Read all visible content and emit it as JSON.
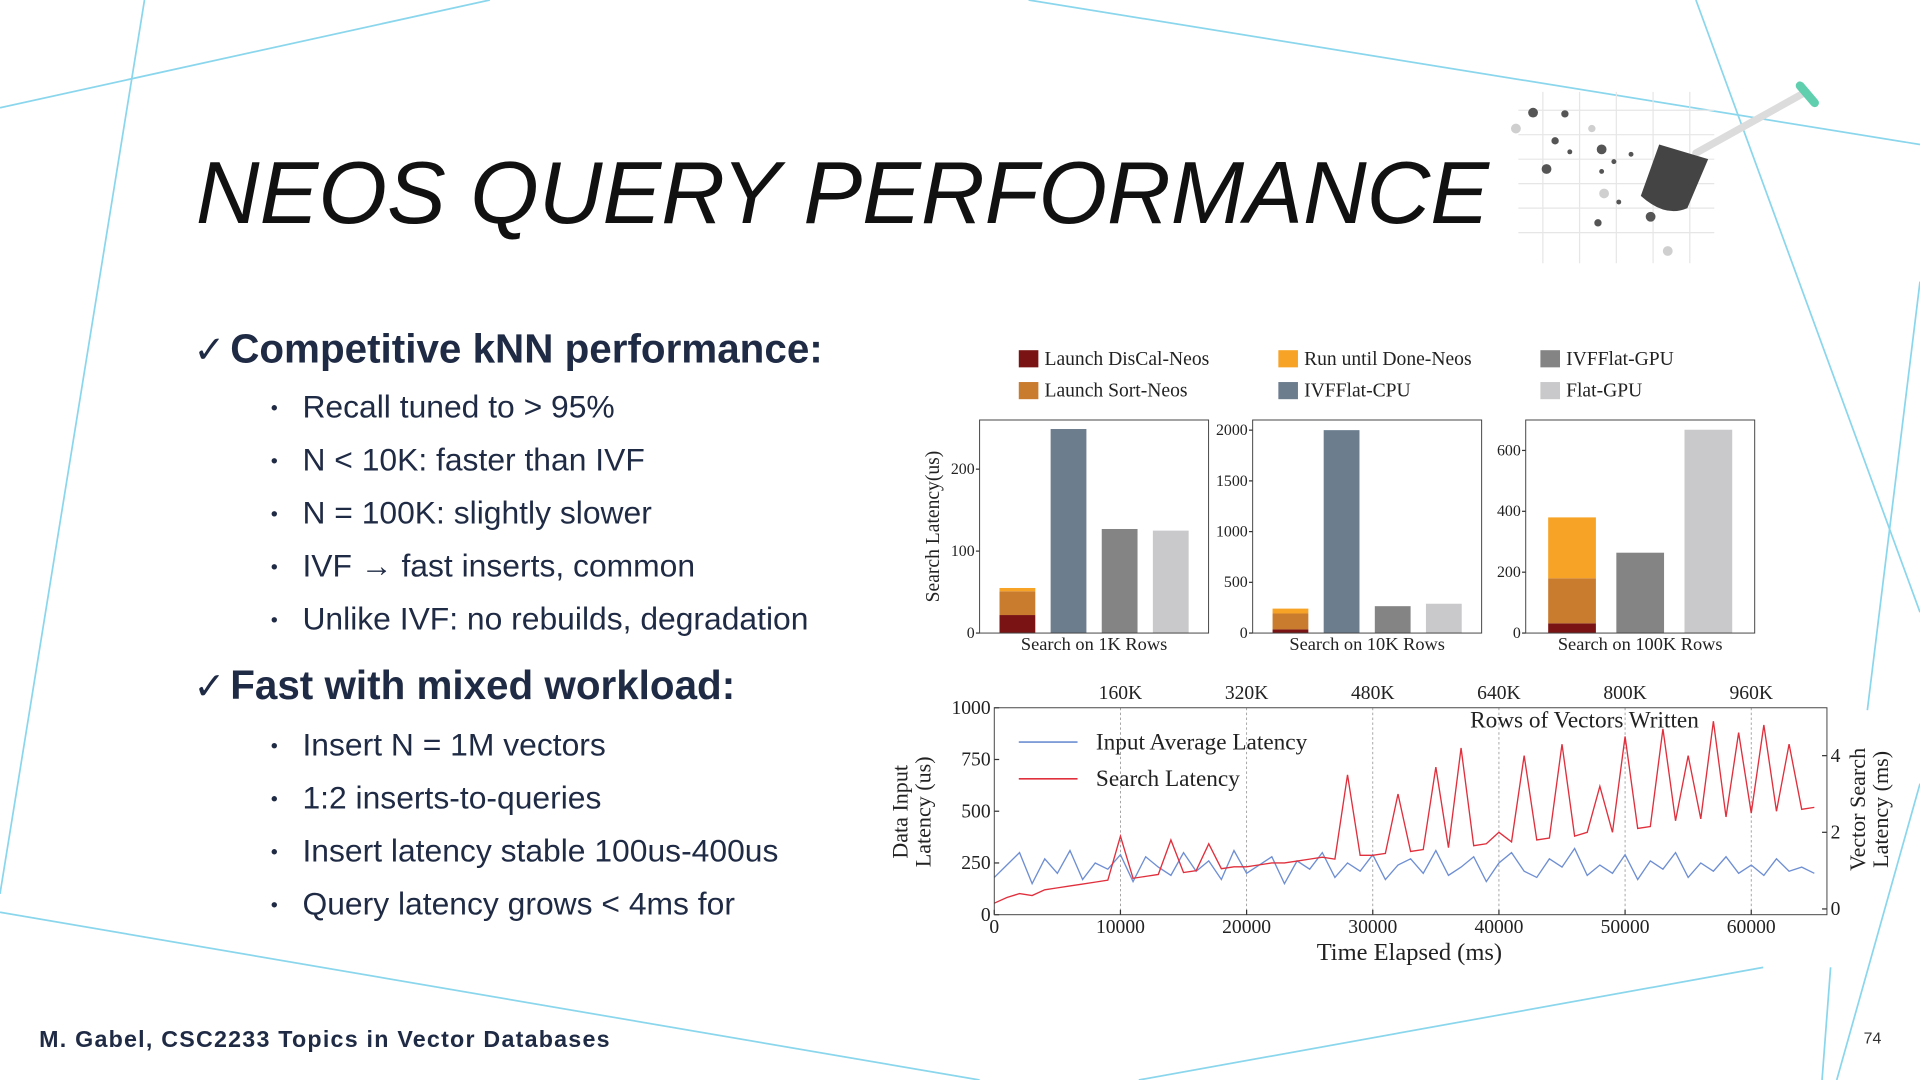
{
  "slide": {
    "title": "NEOS QUERY PERFORMANCE",
    "sections": [
      {
        "heading": "Competitive kNN performance:",
        "bullets": [
          "Recall tuned to > 95%",
          "N < 10K: faster than IVF",
          "N = 100K: slightly slower",
          "IVF → fast inserts, common",
          "Unlike IVF: no rebuilds, degradation"
        ]
      },
      {
        "heading": "Fast with mixed workload:",
        "bullets": [
          "Insert N = 1M vectors",
          "1:2 inserts-to-queries",
          "Insert latency stable 100us-400us",
          "Query latency grows  < 4ms for"
        ]
      }
    ],
    "footer": "M. Gabel, CSC2233 Topics in Vector Databases",
    "page_number": "74"
  },
  "chart_data": [
    {
      "type": "bar",
      "stacked": true,
      "legend": "top",
      "ylabel": "Search  Latency(us)",
      "xlabel": "Search on 1K Rows",
      "categories": [
        null,
        null,
        null,
        null
      ],
      "ylim": [
        0,
        260
      ],
      "yticks": [
        0,
        100,
        200
      ],
      "series": [
        {
          "name": "Launch DisCal-Neos",
          "color": "#7a1414",
          "values": [
            22,
            null,
            null,
            null
          ]
        },
        {
          "name": "Launch Sort-Neos",
          "color": "#c97b2e",
          "values": [
            29,
            null,
            null,
            null
          ]
        },
        {
          "name": "Run until Done-Neos",
          "color": "#f7a325",
          "values": [
            4,
            null,
            null,
            null
          ]
        },
        {
          "name": "IVFFlat-CPU",
          "color": "#6c7d8e",
          "values": [
            null,
            249,
            null,
            null
          ]
        },
        {
          "name": "IVFFlat-GPU",
          "color": "#848484",
          "values": [
            null,
            null,
            127,
            null
          ]
        },
        {
          "name": "Flat-GPU",
          "color": "#c9c9cb",
          "values": [
            null,
            null,
            null,
            125
          ]
        }
      ]
    },
    {
      "type": "bar",
      "stacked": true,
      "xlabel": "Search on 10K Rows",
      "categories": [
        null,
        null,
        null,
        null
      ],
      "ylim": [
        0,
        2100
      ],
      "yticks": [
        0,
        500,
        1000,
        1500,
        2000
      ],
      "series": [
        {
          "color": "#7a1414",
          "values": [
            36,
            null,
            null,
            null
          ]
        },
        {
          "color": "#c97b2e",
          "values": [
            157,
            null,
            null,
            null
          ]
        },
        {
          "color": "#f7a325",
          "values": [
            48,
            null,
            null,
            null
          ]
        },
        {
          "color": "#6c7d8e",
          "values": [
            null,
            2000,
            null,
            null
          ]
        },
        {
          "color": "#848484",
          "values": [
            null,
            null,
            265,
            null
          ]
        },
        {
          "color": "#c9c9cb",
          "values": [
            null,
            null,
            null,
            289
          ]
        }
      ]
    },
    {
      "type": "bar",
      "stacked": true,
      "xlabel": "Search on 100K Rows",
      "categories": [
        null,
        null,
        null
      ],
      "ylim": [
        0,
        700
      ],
      "yticks": [
        0,
        200,
        400,
        600
      ],
      "series": [
        {
          "color": "#7a1414",
          "values": [
            32,
            null,
            null
          ]
        },
        {
          "color": "#c97b2e",
          "values": [
            148,
            null,
            null
          ]
        },
        {
          "color": "#f7a325",
          "values": [
            200,
            null,
            null
          ]
        },
        {
          "color": "#848484",
          "values": [
            null,
            264,
            null
          ]
        },
        {
          "color": "#c9c9cb",
          "values": [
            null,
            null,
            668
          ]
        }
      ]
    },
    {
      "type": "line",
      "legend": "upper left",
      "grid": true,
      "xlabel": "Time Elapsed (ms)",
      "ylabel": "Data Input Latency (us)",
      "y2label": "Vector Search Latency (ms)",
      "x2label": "Rows of Vectors Written",
      "xlim": [
        0,
        66000
      ],
      "xticks": [
        0,
        10000,
        20000,
        30000,
        40000,
        50000,
        60000
      ],
      "x2lim": [
        0,
        1056000
      ],
      "x2ticks": [
        {
          "value": 160000,
          "label": "160K"
        },
        {
          "value": 320000,
          "label": "320K"
        },
        {
          "value": 480000,
          "label": "480K"
        },
        {
          "value": 640000,
          "label": "640K"
        },
        {
          "value": 800000,
          "label": "800K"
        },
        {
          "value": 960000,
          "label": "960K"
        }
      ],
      "ylim": [
        0,
        1000
      ],
      "yticks": [
        0,
        250,
        500,
        750,
        1000
      ],
      "y2lim": [
        -0.15,
        5.25
      ],
      "y2ticks": [
        0,
        2,
        4
      ],
      "x": [
        0,
        1000,
        2000,
        3000,
        4000,
        5000,
        6000,
        7000,
        8000,
        9000,
        10000,
        11000,
        12000,
        13000,
        14000,
        15000,
        16000,
        17000,
        18000,
        19000,
        20000,
        21000,
        22000,
        23000,
        24000,
        25000,
        26000,
        27000,
        28000,
        29000,
        30000,
        31000,
        32000,
        33000,
        34000,
        35000,
        36000,
        37000,
        38000,
        39000,
        40000,
        41000,
        42000,
        43000,
        44000,
        45000,
        46000,
        47000,
        48000,
        49000,
        50000,
        51000,
        52000,
        53000,
        54000,
        55000,
        56000,
        57000,
        58000,
        59000,
        60000,
        61000,
        62000,
        63000,
        64000,
        65000
      ],
      "series": [
        {
          "name": "Input Average Latency",
          "color": "#6f8fd3",
          "values": [
            180,
            240,
            300,
            150,
            270,
            200,
            310,
            170,
            250,
            220,
            290,
            160,
            280,
            230,
            190,
            300,
            210,
            260,
            170,
            310,
            200,
            240,
            280,
            150,
            260,
            220,
            300,
            180,
            250,
            210,
            290,
            170,
            240,
            270,
            200,
            310,
            190,
            230,
            280,
            160,
            250,
            300,
            210,
            180,
            270,
            230,
            320,
            190,
            240,
            200,
            290,
            170,
            260,
            220,
            300,
            180,
            250,
            210,
            280,
            200,
            240,
            190,
            270,
            210,
            230,
            200
          ]
        },
        {
          "name": "Search Latency",
          "color": "#e0303d",
          "axis": "y2",
          "values": [
            0.15,
            0.3,
            0.4,
            0.35,
            0.5,
            0.55,
            0.6,
            0.65,
            0.7,
            0.75,
            1.9,
            0.8,
            0.85,
            0.9,
            1.8,
            0.95,
            1.0,
            1.7,
            1.05,
            1.1,
            1.1,
            1.15,
            1.2,
            1.2,
            1.25,
            1.3,
            1.35,
            1.3,
            3.5,
            1.4,
            1.4,
            1.45,
            3.0,
            1.5,
            1.55,
            3.7,
            1.6,
            4.2,
            1.65,
            1.7,
            2.0,
            1.75,
            4.0,
            1.8,
            1.85,
            4.3,
            1.9,
            2.0,
            3.2,
            2.0,
            4.5,
            2.1,
            2.15,
            4.7,
            2.3,
            4.0,
            2.35,
            4.9,
            2.4,
            4.6,
            2.5,
            4.8,
            2.55,
            4.3,
            2.6,
            2.65
          ]
        }
      ]
    }
  ]
}
